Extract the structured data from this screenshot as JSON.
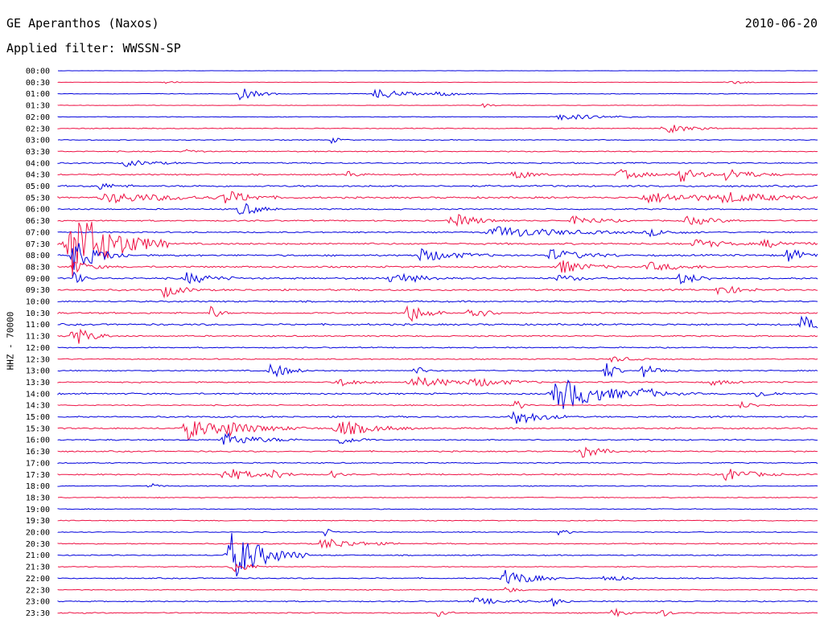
{
  "header": {
    "station": "GE Aperanthos (Naxos)",
    "date": "2010-06-20",
    "filter": "Applied filter: WWSSN-SP"
  },
  "chart_data": {
    "type": "line",
    "title": "GE Aperanthos (Naxos)",
    "subtitle": "Applied filter: WWSSN-SP",
    "ylabel": "HHZ - 70000",
    "xlabel": "",
    "colors": {
      "blue": "#0000dd",
      "red": "#ee1144"
    },
    "rows": [
      {
        "label": "00:00",
        "color": "blue",
        "level": 0.1,
        "events": []
      },
      {
        "label": "00:30",
        "color": "red",
        "level": 0.15,
        "events": [
          {
            "x": 0.14,
            "amp": 3,
            "w": 0.01
          },
          {
            "x": 0.88,
            "amp": 3,
            "w": 0.02
          }
        ]
      },
      {
        "label": "01:00",
        "color": "blue",
        "level": 0.3,
        "events": [
          {
            "x": 0.24,
            "amp": 8,
            "w": 0.02
          },
          {
            "x": 0.42,
            "amp": 7,
            "w": 0.03
          },
          {
            "x": 0.5,
            "amp": 4,
            "w": 0.02
          }
        ]
      },
      {
        "label": "01:30",
        "color": "red",
        "level": 0.2,
        "events": [
          {
            "x": 0.56,
            "amp": 3,
            "w": 0.01
          }
        ]
      },
      {
        "label": "02:00",
        "color": "blue",
        "level": 0.3,
        "events": [
          {
            "x": 0.66,
            "amp": 4,
            "w": 0.05
          }
        ]
      },
      {
        "label": "02:30",
        "color": "red",
        "level": 0.4,
        "events": [
          {
            "x": 0.8,
            "amp": 6,
            "w": 0.03
          }
        ]
      },
      {
        "label": "03:00",
        "color": "blue",
        "level": 0.4,
        "events": [
          {
            "x": 0.36,
            "amp": 4,
            "w": 0.01
          }
        ]
      },
      {
        "label": "03:30",
        "color": "red",
        "level": 0.5,
        "events": [
          {
            "x": 0.17,
            "amp": 4,
            "w": 0.01
          }
        ]
      },
      {
        "label": "04:00",
        "color": "blue",
        "level": 0.6,
        "events": [
          {
            "x": 0.09,
            "amp": 4,
            "w": 0.03
          }
        ]
      },
      {
        "label": "04:30",
        "color": "red",
        "level": 0.6,
        "events": [
          {
            "x": 0.38,
            "amp": 6,
            "w": 0.01
          },
          {
            "x": 0.6,
            "amp": 7,
            "w": 0.02
          },
          {
            "x": 0.74,
            "amp": 6,
            "w": 0.03
          },
          {
            "x": 0.82,
            "amp": 10,
            "w": 0.02
          },
          {
            "x": 0.88,
            "amp": 8,
            "w": 0.03
          }
        ]
      },
      {
        "label": "05:00",
        "color": "blue",
        "level": 0.8,
        "events": [
          {
            "x": 0.05,
            "amp": 5,
            "w": 0.02
          }
        ]
      },
      {
        "label": "05:30",
        "color": "red",
        "level": 0.8,
        "events": [
          {
            "x": 0.07,
            "amp": 6,
            "w": 0.08
          },
          {
            "x": 0.22,
            "amp": 8,
            "w": 0.03
          },
          {
            "x": 0.78,
            "amp": 6,
            "w": 0.08
          },
          {
            "x": 0.88,
            "amp": 5,
            "w": 0.06
          }
        ]
      },
      {
        "label": "06:00",
        "color": "blue",
        "level": 0.6,
        "events": [
          {
            "x": 0.24,
            "amp": 10,
            "w": 0.02
          }
        ]
      },
      {
        "label": "06:30",
        "color": "red",
        "level": 0.6,
        "events": [
          {
            "x": 0.52,
            "amp": 9,
            "w": 0.03
          },
          {
            "x": 0.68,
            "amp": 6,
            "w": 0.03
          },
          {
            "x": 0.83,
            "amp": 6,
            "w": 0.03
          }
        ]
      },
      {
        "label": "07:00",
        "color": "blue",
        "level": 0.6,
        "events": [
          {
            "x": 0.58,
            "amp": 7,
            "w": 0.08
          },
          {
            "x": 0.78,
            "amp": 4,
            "w": 0.03
          }
        ]
      },
      {
        "label": "07:30",
        "color": "red",
        "level": 0.8,
        "events": [
          {
            "x": 0.02,
            "amp": 45,
            "w": 0.05
          },
          {
            "x": 0.84,
            "amp": 6,
            "w": 0.03
          },
          {
            "x": 0.93,
            "amp": 5,
            "w": 0.03
          }
        ]
      },
      {
        "label": "08:00",
        "color": "blue",
        "level": 0.8,
        "events": [
          {
            "x": 0.02,
            "amp": 20,
            "w": 0.03
          },
          {
            "x": 0.48,
            "amp": 8,
            "w": 0.04
          },
          {
            "x": 0.65,
            "amp": 7,
            "w": 0.04
          },
          {
            "x": 0.96,
            "amp": 9,
            "w": 0.02
          }
        ]
      },
      {
        "label": "08:30",
        "color": "red",
        "level": 0.8,
        "events": [
          {
            "x": 0.02,
            "amp": 8,
            "w": 0.02
          },
          {
            "x": 0.66,
            "amp": 9,
            "w": 0.03
          },
          {
            "x": 0.78,
            "amp": 5,
            "w": 0.04
          }
        ]
      },
      {
        "label": "09:00",
        "color": "blue",
        "level": 0.8,
        "events": [
          {
            "x": 0.02,
            "amp": 10,
            "w": 0.01
          },
          {
            "x": 0.17,
            "amp": 7,
            "w": 0.03
          },
          {
            "x": 0.44,
            "amp": 8,
            "w": 0.03
          },
          {
            "x": 0.66,
            "amp": 5,
            "w": 0.02
          },
          {
            "x": 0.82,
            "amp": 8,
            "w": 0.02
          }
        ]
      },
      {
        "label": "09:30",
        "color": "red",
        "level": 0.8,
        "events": [
          {
            "x": 0.14,
            "amp": 9,
            "w": 0.02
          },
          {
            "x": 0.87,
            "amp": 8,
            "w": 0.02
          }
        ]
      },
      {
        "label": "10:00",
        "color": "blue",
        "level": 0.7,
        "events": []
      },
      {
        "label": "10:30",
        "color": "red",
        "level": 0.7,
        "events": [
          {
            "x": 0.2,
            "amp": 10,
            "w": 0.01
          },
          {
            "x": 0.46,
            "amp": 14,
            "w": 0.02
          },
          {
            "x": 0.54,
            "amp": 10,
            "w": 0.02
          }
        ]
      },
      {
        "label": "11:00",
        "color": "blue",
        "level": 0.8,
        "events": [
          {
            "x": 0.98,
            "amp": 11,
            "w": 0.02
          }
        ]
      },
      {
        "label": "11:30",
        "color": "red",
        "level": 0.6,
        "events": [
          {
            "x": 0.02,
            "amp": 14,
            "w": 0.02
          }
        ]
      },
      {
        "label": "12:00",
        "color": "blue",
        "level": 0.5,
        "events": []
      },
      {
        "label": "12:30",
        "color": "red",
        "level": 0.5,
        "events": [
          {
            "x": 0.73,
            "amp": 4,
            "w": 0.02
          }
        ]
      },
      {
        "label": "13:00",
        "color": "blue",
        "level": 0.5,
        "events": [
          {
            "x": 0.28,
            "amp": 11,
            "w": 0.02
          },
          {
            "x": 0.47,
            "amp": 7,
            "w": 0.01
          },
          {
            "x": 0.72,
            "amp": 16,
            "w": 0.01
          },
          {
            "x": 0.77,
            "amp": 8,
            "w": 0.02
          }
        ]
      },
      {
        "label": "13:30",
        "color": "red",
        "level": 0.6,
        "events": [
          {
            "x": 0.37,
            "amp": 6,
            "w": 0.02
          },
          {
            "x": 0.47,
            "amp": 6,
            "w": 0.07
          },
          {
            "x": 0.55,
            "amp": 4,
            "w": 0.03
          },
          {
            "x": 0.86,
            "amp": 4,
            "w": 0.02
          }
        ]
      },
      {
        "label": "14:00",
        "color": "blue",
        "level": 0.7,
        "events": [
          {
            "x": 0.66,
            "amp": 22,
            "w": 0.05
          },
          {
            "x": 0.77,
            "amp": 5,
            "w": 0.03
          },
          {
            "x": 0.92,
            "amp": 5,
            "w": 0.02
          }
        ]
      },
      {
        "label": "14:30",
        "color": "red",
        "level": 0.5,
        "events": [
          {
            "x": 0.6,
            "amp": 9,
            "w": 0.01
          },
          {
            "x": 0.9,
            "amp": 4,
            "w": 0.02
          }
        ]
      },
      {
        "label": "15:00",
        "color": "blue",
        "level": 0.7,
        "events": [
          {
            "x": 0.6,
            "amp": 11,
            "w": 0.03
          }
        ]
      },
      {
        "label": "15:30",
        "color": "red",
        "level": 0.7,
        "events": [
          {
            "x": 0.17,
            "amp": 15,
            "w": 0.03
          },
          {
            "x": 0.22,
            "amp": 8,
            "w": 0.05
          },
          {
            "x": 0.37,
            "amp": 10,
            "w": 0.04
          }
        ]
      },
      {
        "label": "16:00",
        "color": "blue",
        "level": 0.6,
        "events": [
          {
            "x": 0.22,
            "amp": 8,
            "w": 0.04
          },
          {
            "x": 0.37,
            "amp": 6,
            "w": 0.02
          }
        ]
      },
      {
        "label": "16:30",
        "color": "red",
        "level": 0.6,
        "events": [
          {
            "x": 0.69,
            "amp": 9,
            "w": 0.02
          }
        ]
      },
      {
        "label": "17:00",
        "color": "blue",
        "level": 0.5,
        "events": []
      },
      {
        "label": "17:30",
        "color": "red",
        "level": 0.6,
        "events": [
          {
            "x": 0.22,
            "amp": 9,
            "w": 0.03
          },
          {
            "x": 0.28,
            "amp": 5,
            "w": 0.02
          },
          {
            "x": 0.36,
            "amp": 5,
            "w": 0.01
          },
          {
            "x": 0.88,
            "amp": 8,
            "w": 0.03
          }
        ]
      },
      {
        "label": "18:00",
        "color": "blue",
        "level": 0.4,
        "events": [
          {
            "x": 0.12,
            "amp": 4,
            "w": 0.01
          }
        ]
      },
      {
        "label": "18:30",
        "color": "red",
        "level": 0.4,
        "events": []
      },
      {
        "label": "19:00",
        "color": "blue",
        "level": 0.4,
        "events": []
      },
      {
        "label": "19:30",
        "color": "red",
        "level": 0.4,
        "events": []
      },
      {
        "label": "20:00",
        "color": "blue",
        "level": 0.4,
        "events": [
          {
            "x": 0.35,
            "amp": 6,
            "w": 0.01
          },
          {
            "x": 0.66,
            "amp": 5,
            "w": 0.01
          }
        ]
      },
      {
        "label": "20:30",
        "color": "red",
        "level": 0.5,
        "events": [
          {
            "x": 0.35,
            "amp": 7,
            "w": 0.04
          }
        ]
      },
      {
        "label": "21:00",
        "color": "blue",
        "level": 0.5,
        "events": [
          {
            "x": 0.23,
            "amp": 30,
            "w": 0.04
          }
        ]
      },
      {
        "label": "21:30",
        "color": "red",
        "level": 0.4,
        "events": [
          {
            "x": 0.23,
            "amp": 8,
            "w": 0.02
          }
        ]
      },
      {
        "label": "22:00",
        "color": "blue",
        "level": 0.5,
        "events": [
          {
            "x": 0.59,
            "amp": 11,
            "w": 0.03
          },
          {
            "x": 0.72,
            "amp": 5,
            "w": 0.02
          }
        ]
      },
      {
        "label": "22:30",
        "color": "red",
        "level": 0.4,
        "events": [
          {
            "x": 0.59,
            "amp": 6,
            "w": 0.01
          }
        ]
      },
      {
        "label": "23:00",
        "color": "blue",
        "level": 0.5,
        "events": [
          {
            "x": 0.55,
            "amp": 4,
            "w": 0.04
          },
          {
            "x": 0.65,
            "amp": 8,
            "w": 0.01
          }
        ]
      },
      {
        "label": "23:30",
        "color": "red",
        "level": 0.5,
        "events": [
          {
            "x": 0.5,
            "amp": 5,
            "w": 0.01
          },
          {
            "x": 0.73,
            "amp": 8,
            "w": 0.01
          },
          {
            "x": 0.79,
            "amp": 9,
            "w": 0.01
          }
        ]
      }
    ]
  }
}
